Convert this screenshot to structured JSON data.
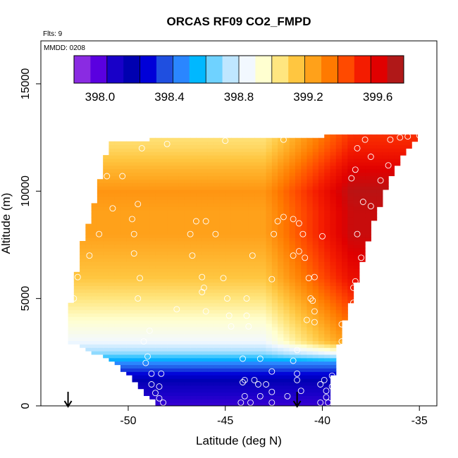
{
  "chart_data": {
    "type": "heatmap",
    "title": "ORCAS RF09 CO2_FMPD",
    "annotations": {
      "flights": "Flts: 9",
      "date": "MMDD: 0208"
    },
    "xlabel": "Latitude (deg N)",
    "ylabel": "Altitude (m)",
    "xlim": [
      -54.5,
      -34.1
    ],
    "ylim": [
      0,
      17000
    ],
    "xticks": [
      -50,
      -45,
      -40,
      -35
    ],
    "yticks": [
      0,
      5000,
      10000,
      15000
    ],
    "colorbar": {
      "range": [
        397.85,
        399.75
      ],
      "ticks": [
        398.0,
        398.4,
        398.8,
        399.2,
        399.6
      ],
      "tick_labels": [
        "398.0",
        "398.4",
        "398.8",
        "399.2",
        "399.6"
      ],
      "colors": [
        "#8a2be2",
        "#5a00e0",
        "#1800c8",
        "#0000b0",
        "#0000d8",
        "#1f4fe0",
        "#2a86ff",
        "#00b8ff",
        "#6fd2ff",
        "#bfe6ff",
        "#f2f8ff",
        "#ffffd0",
        "#ffe680",
        "#ffc640",
        "#ffa11a",
        "#ff7a00",
        "#ff4a00",
        "#f41c00",
        "#e00000",
        "#b01818"
      ]
    },
    "field": {
      "description": "Interpolated CO2 curtain (ppm) over latitude and altitude",
      "altitude_profile": [
        [
          0,
          398.0
        ],
        [
          600,
          398.05
        ],
        [
          1000,
          398.1
        ],
        [
          1500,
          398.25
        ],
        [
          2000,
          398.45
        ],
        [
          2500,
          398.7
        ],
        [
          3000,
          398.85
        ],
        [
          3500,
          398.9
        ],
        [
          4000,
          398.95
        ],
        [
          5000,
          399.05
        ],
        [
          6000,
          399.15
        ],
        [
          7000,
          399.2
        ],
        [
          8000,
          399.25
        ],
        [
          9000,
          399.25
        ],
        [
          10000,
          399.28
        ],
        [
          11000,
          399.2
        ],
        [
          12000,
          399.1
        ],
        [
          12700,
          399.05
        ]
      ],
      "north_enhancement_ppm": 0.45,
      "enhancement_start_lat": -43
    },
    "boundary": {
      "left": [
        [
          -53.2,
          3000
        ],
        [
          -53.0,
          4500
        ],
        [
          -52.7,
          6000
        ],
        [
          -52.4,
          7500
        ],
        [
          -51.8,
          9200
        ],
        [
          -51.4,
          10800
        ],
        [
          -51.0,
          12300
        ]
      ],
      "top": [
        [
          -51.0,
          12300
        ],
        [
          -49,
          12400
        ],
        [
          -46,
          12450
        ],
        [
          -43,
          12500
        ],
        [
          -40,
          12550
        ],
        [
          -38.5,
          12650
        ],
        [
          -35,
          12700
        ]
      ],
      "right": [
        [
          -35,
          12700
        ],
        [
          -36,
          11500
        ],
        [
          -36.8,
          10000
        ],
        [
          -37.5,
          8200
        ],
        [
          -38.0,
          6500
        ],
        [
          -38.5,
          5000
        ],
        [
          -38.9,
          3800
        ],
        [
          -39.3,
          2400
        ],
        [
          -39.5,
          1200
        ],
        [
          -39.6,
          0
        ]
      ],
      "bottom": [
        [
          -48.5,
          0
        ],
        [
          -49.5,
          1000
        ],
        [
          -50.5,
          1900
        ],
        [
          -51.8,
          2500
        ],
        [
          -53.2,
          3000
        ]
      ]
    },
    "sample_points": [
      [
        -49.3,
        12000
      ],
      [
        -48,
        12200
      ],
      [
        -45,
        12350
      ],
      [
        -42,
        12400
      ],
      [
        -51.1,
        10700
      ],
      [
        -50.3,
        10700
      ],
      [
        -49.5,
        9400
      ],
      [
        -50.8,
        9200
      ],
      [
        -51.5,
        8000
      ],
      [
        -49.8,
        8700
      ],
      [
        -49.7,
        8000
      ],
      [
        -46.5,
        8600
      ],
      [
        -46,
        8600
      ],
      [
        -46.8,
        8000
      ],
      [
        -45.5,
        8000
      ],
      [
        -42.3,
        8600
      ],
      [
        -42,
        8800
      ],
      [
        -41.5,
        8700
      ],
      [
        -41.2,
        8500
      ],
      [
        -42.5,
        8000
      ],
      [
        -41.0,
        8000
      ],
      [
        -40,
        7900
      ],
      [
        -52.0,
        7000
      ],
      [
        -49.7,
        7100
      ],
      [
        -46.7,
        7000
      ],
      [
        -43.6,
        7000
      ],
      [
        -41.5,
        7000
      ],
      [
        -40.9,
        6900
      ],
      [
        -52.6,
        6000
      ],
      [
        -49.4,
        5950
      ],
      [
        -46.2,
        6000
      ],
      [
        -45.1,
        5950
      ],
      [
        -42.6,
        5900
      ],
      [
        -40.7,
        5950
      ],
      [
        -40.4,
        6000
      ],
      [
        -46.1,
        5500
      ],
      [
        -52.8,
        5000
      ],
      [
        -49.5,
        5000
      ],
      [
        -46.2,
        5300
      ],
      [
        -44.9,
        5000
      ],
      [
        -43.9,
        5000
      ],
      [
        -40.6,
        5000
      ],
      [
        -40.5,
        4900
      ],
      [
        -40.4,
        4400
      ],
      [
        -44.8,
        4200
      ],
      [
        -43.9,
        4200
      ],
      [
        -46.0,
        4400
      ],
      [
        -47.5,
        4500
      ],
      [
        -44.7,
        3700
      ],
      [
        -43.8,
        3700
      ],
      [
        -40.8,
        4000
      ],
      [
        -40.4,
        3900
      ],
      [
        -49.2,
        3000
      ],
      [
        -48.9,
        3500
      ],
      [
        -49.0,
        2300
      ],
      [
        -49.1,
        2000
      ],
      [
        -48.8,
        1500
      ],
      [
        -48.3,
        1500
      ],
      [
        -48.8,
        1000
      ],
      [
        -48.4,
        900
      ],
      [
        -48.6,
        600
      ],
      [
        -48.4,
        350
      ],
      [
        -48.2,
        150
      ],
      [
        -44.1,
        2200
      ],
      [
        -43.2,
        2200
      ],
      [
        -42.6,
        1600
      ],
      [
        -41.3,
        1500
      ],
      [
        -41.5,
        2100
      ],
      [
        -41.3,
        2600
      ],
      [
        -41.3,
        1200
      ],
      [
        -41.1,
        700
      ],
      [
        -39.9,
        1200
      ],
      [
        -39.5,
        1400
      ],
      [
        -39.8,
        700
      ],
      [
        -39.7,
        150
      ],
      [
        -40.1,
        150
      ],
      [
        -44.0,
        1200
      ],
      [
        -43.5,
        1200
      ],
      [
        -43.3,
        1000
      ],
      [
        -44.1,
        1100
      ],
      [
        -44.0,
        450
      ],
      [
        -44.2,
        150
      ],
      [
        -43.7,
        150
      ],
      [
        -43.2,
        450
      ],
      [
        -42.6,
        650
      ],
      [
        -42.9,
        1000
      ],
      [
        -42.6,
        150
      ],
      [
        -41.8,
        450
      ],
      [
        -40.1,
        1000
      ],
      [
        -39.8,
        400
      ],
      [
        -39.5,
        900
      ],
      [
        -38.2,
        8000
      ],
      [
        -37.9,
        9500
      ],
      [
        -38.0,
        6900
      ],
      [
        -38.3,
        5800
      ],
      [
        -38.4,
        5500
      ],
      [
        -37.5,
        5500
      ],
      [
        -38.4,
        4800
      ],
      [
        -39.0,
        3800
      ],
      [
        -39.0,
        3000
      ],
      [
        -38.7,
        2200
      ],
      [
        -37.8,
        12400
      ],
      [
        -36.5,
        12400
      ],
      [
        -36.0,
        12500
      ],
      [
        -35.6,
        12550
      ],
      [
        -35.0,
        12600
      ],
      [
        -37.5,
        11600
      ],
      [
        -38.3,
        11000
      ],
      [
        -38.5,
        10600
      ],
      [
        -36.6,
        11200
      ],
      [
        -37.0,
        10500
      ],
      [
        -37.5,
        9300
      ],
      [
        -38.2,
        12000
      ],
      [
        -41.2,
        7200
      ]
    ],
    "markers": [
      {
        "symbol": "down-arrow",
        "x": -53.1
      },
      {
        "symbol": "down-arrow",
        "x": -41.3
      }
    ]
  }
}
